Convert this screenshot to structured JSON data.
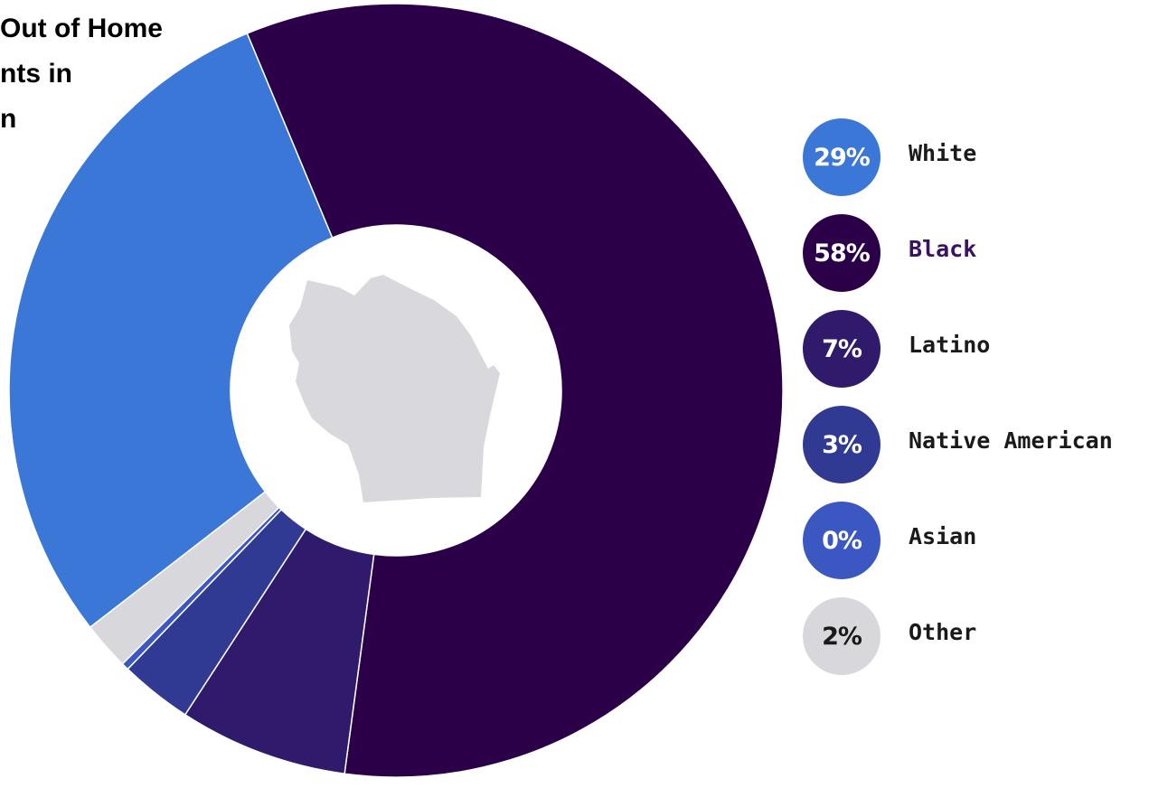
{
  "chart_data": {
    "type": "pie",
    "title_lines": [
      "Out of Home",
      "nts in",
      "n"
    ],
    "slices": [
      {
        "label": "Black",
        "value": 58,
        "pct_label": "58%",
        "color": "#2c0049",
        "label_color": "#3a1264"
      },
      {
        "label": "Latino",
        "value": 7,
        "pct_label": "7%",
        "color": "#301a6b",
        "label_color": "#1a1a1a"
      },
      {
        "label": "Native American",
        "value": 3,
        "pct_label": "3%",
        "color": "#303a92",
        "label_color": "#1a1a1a"
      },
      {
        "label": "Asian",
        "value": 0.3,
        "pct_label": "0%",
        "color": "#3a57c2",
        "label_color": "#1a1a1a"
      },
      {
        "label": "Other",
        "value": 2,
        "pct_label": "2%",
        "color": "#d8d8dc",
        "label_color": "#1a1a1a"
      },
      {
        "label": "White",
        "value": 29,
        "pct_label": "29%",
        "color": "#3a77d6",
        "label_color": "#1a1a1a"
      }
    ],
    "legend_order": [
      "White",
      "Black",
      "Latino",
      "Native American",
      "Asian",
      "Other"
    ],
    "legend_position": "right",
    "center_icon": "wisconsin-state-icon",
    "center_icon_color": "#d9d9dd"
  }
}
